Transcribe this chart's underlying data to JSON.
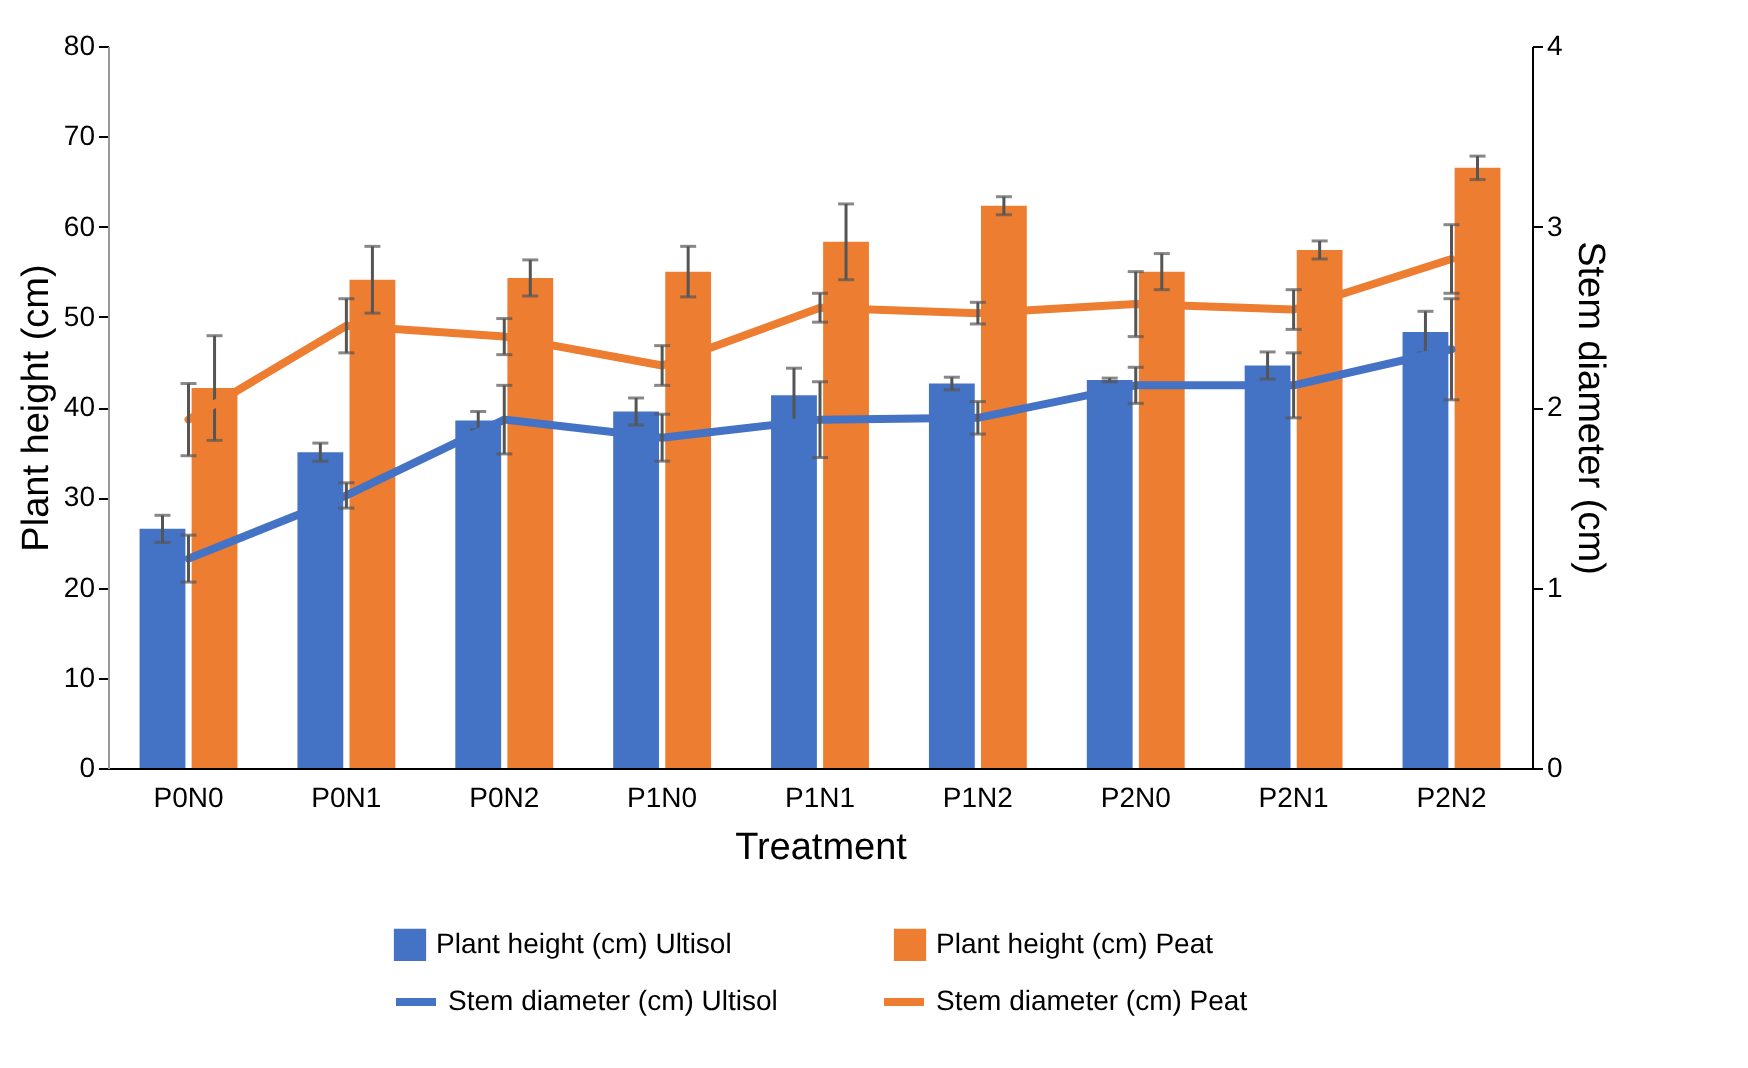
{
  "chart_data": {
    "type": "bar",
    "xlabel": "Treatment",
    "ylabel": "Plant height (cm)",
    "y2label": "Stem diameter (cm)",
    "categories": [
      "P0N0",
      "P0N1",
      "P0N2",
      "P1N0",
      "P1N1",
      "P1N2",
      "P2N0",
      "P2N1",
      "P2N2"
    ],
    "ylim": [
      0,
      80
    ],
    "yticks": [
      0,
      10,
      20,
      30,
      40,
      50,
      60,
      70,
      80
    ],
    "y2lim": [
      0,
      4
    ],
    "y2ticks": [
      0,
      1,
      2,
      3,
      4
    ],
    "legend": "bottom",
    "series": [
      {
        "name": "Plant height (cm) Ultisol",
        "color": "#4472c4",
        "values": [
          26.5,
          35,
          38.5,
          39.5,
          41.3,
          42.6,
          43,
          44.6,
          48.3
        ],
        "errors": [
          1.5,
          1,
          1,
          1.5,
          3,
          0.7,
          0.2,
          1.5,
          2.3
        ]
      },
      {
        "name": "Plant height (cm) Peat",
        "color": "#ed7d31",
        "values": [
          42.1,
          54.1,
          54.3,
          55,
          58.3,
          62.3,
          55,
          57.4,
          66.5
        ],
        "errors": [
          5.8,
          3.7,
          2,
          2.8,
          4.2,
          1,
          2,
          1,
          1.3
        ]
      },
      {
        "name": "Stem diameter (cm) Ultisol",
        "type": "line",
        "axis": "y2",
        "color": "#4472c4",
        "values": [
          1.16,
          1.51,
          1.93,
          1.83,
          1.93,
          1.94,
          2.12,
          2.12,
          2.32
        ],
        "errors": [
          0.13,
          0.07,
          0.19,
          0.13,
          0.21,
          0.09,
          0.1,
          0.18,
          0.28
        ]
      },
      {
        "name": "Stem diameter (cm) Peat",
        "type": "line",
        "axis": "y2",
        "color": "#ed7d31",
        "values": [
          1.93,
          2.45,
          2.39,
          2.23,
          2.55,
          2.52,
          2.57,
          2.54,
          2.82
        ],
        "errors": [
          0.2,
          0.15,
          0.1,
          0.11,
          0.08,
          0.06,
          0.18,
          0.11,
          0.19
        ]
      }
    ]
  }
}
